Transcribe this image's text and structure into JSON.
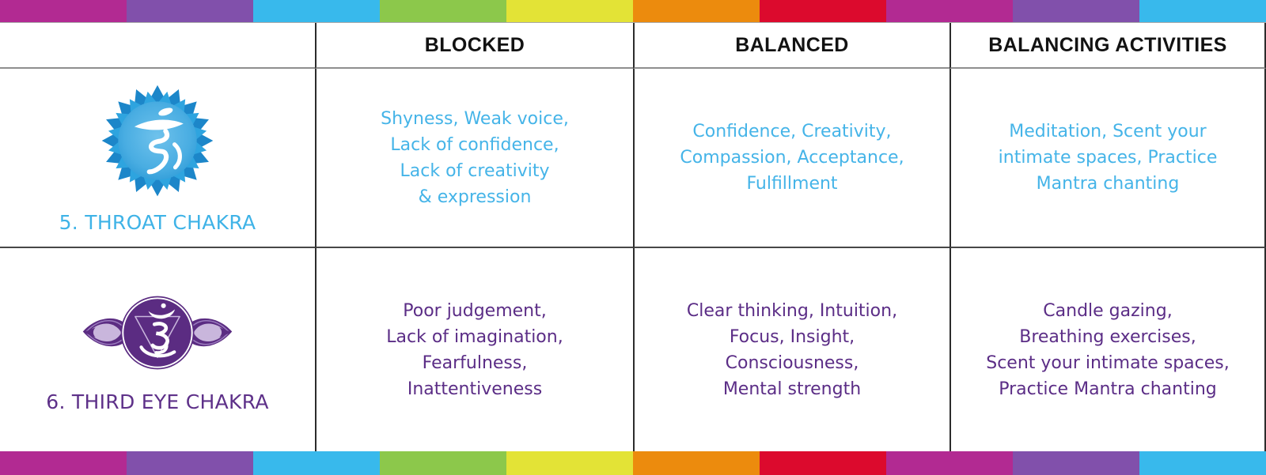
{
  "stripes": {
    "colors": [
      "#B22A92",
      "#8150AB",
      "#38B9EC",
      "#8CC84B",
      "#E3E336",
      "#EC8B0D",
      "#DC0A2D",
      "#B22A92",
      "#8150AB",
      "#38B9EC"
    ]
  },
  "header": {
    "columns": [
      "BLOCKED",
      "BALANCED",
      "BALANCING ACTIVITIES"
    ]
  },
  "palette": {
    "row_throat_text": "#45B4E8",
    "row_third_eye_text": "#5B2D86",
    "throat_label": "#3FB3E7",
    "third_eye_label": "#5E3189",
    "throat_icon_blue": "#2F9FD8",
    "third_eye_purple": "#5B2C82",
    "third_eye_lavender": "#C9B6DC"
  },
  "rows": [
    {
      "label": "5. THROAT CHAKRA",
      "icon": "throat-chakra-lotus",
      "blocked": [
        "Shyness, Weak voice,",
        "Lack of confidence,",
        "Lack of creativity",
        "& expression"
      ],
      "balanced": [
        "Confidence, Creativity,",
        "Compassion, Acceptance,",
        "Fulfillment"
      ],
      "activities": [
        "Meditation, Scent your",
        "intimate spaces, Practice",
        "Mantra chanting"
      ]
    },
    {
      "label": "6. THIRD EYE CHAKRA",
      "icon": "third-eye-chakra",
      "blocked": [
        "Poor judgement,",
        "Lack of imagination,",
        "Fearfulness,",
        "Inattentiveness"
      ],
      "balanced": [
        "Clear thinking, Intuition,",
        "Focus, Insight,",
        "Consciousness,",
        "Mental strength"
      ],
      "activities": [
        "Candle gazing,",
        "Breathing exercises,",
        "Scent your intimate spaces,",
        "Practice Mantra chanting"
      ]
    }
  ]
}
